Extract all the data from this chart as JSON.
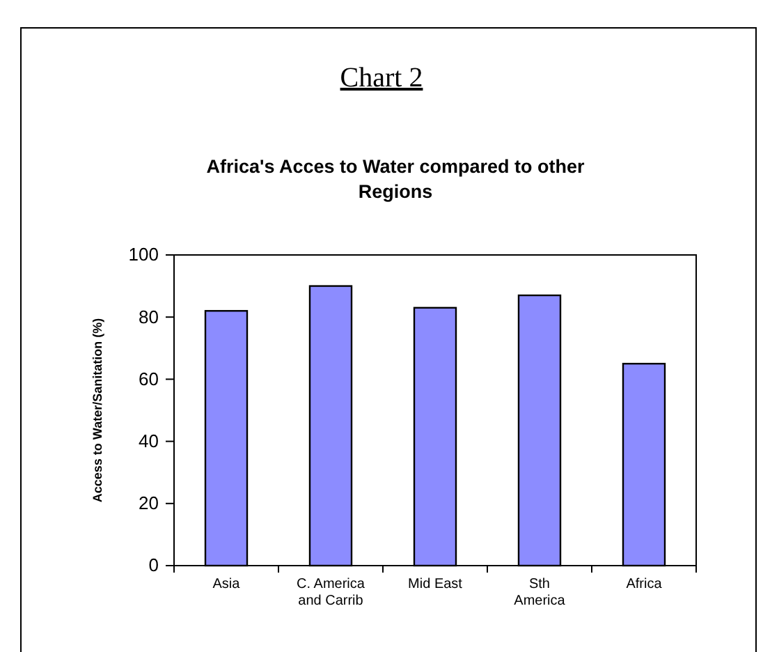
{
  "chart_data": {
    "type": "bar",
    "title": "Chart 2",
    "subtitle": "Africa's Acces to Water compared to other Regions",
    "ylabel": "Access to Water/Sanitation (%)",
    "categories": [
      "Asia",
      "C. America and Carrib",
      "Mid East",
      "Sth America",
      "Africa"
    ],
    "values": [
      82,
      90,
      83,
      87,
      65
    ],
    "color": "#8c8cff",
    "ylim": [
      0,
      100
    ],
    "yticks": [
      0,
      20,
      40,
      60,
      80,
      100
    ],
    "grid": false
  }
}
